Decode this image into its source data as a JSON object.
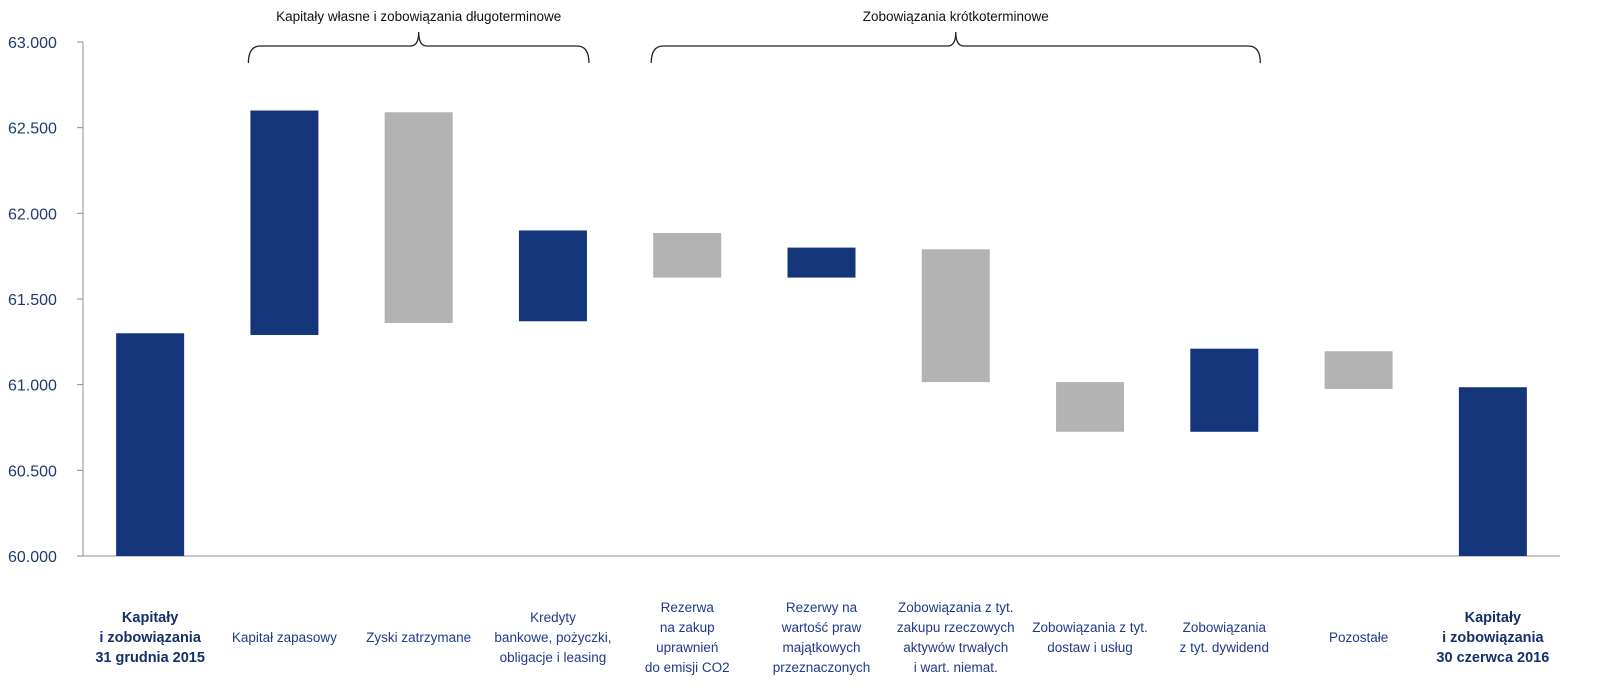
{
  "chart_data": {
    "type": "bar",
    "subtype": "waterfall",
    "title": "",
    "xlabel": "",
    "ylabel": "",
    "ylim": [
      60000,
      63000
    ],
    "y_ticks": [
      60000,
      60500,
      61000,
      61500,
      62000,
      62500,
      63000
    ],
    "y_tick_labels": [
      "60.000",
      "60.500",
      "61.000",
      "61.500",
      "62.000",
      "62.500",
      "63.000"
    ],
    "grid": false,
    "legend": "none",
    "colors": {
      "increase": "#14357a",
      "decrease": "#b3b3b3",
      "total": "#14357a"
    },
    "categories": [
      {
        "label": [
          "Kapitały",
          "i zobowiązania",
          "31 grudnia 2015"
        ],
        "bold": true
      },
      {
        "label": [
          "Kapitał zapasowy"
        ],
        "bold": false
      },
      {
        "label": [
          "Zyski zatrzymane"
        ],
        "bold": false
      },
      {
        "label": [
          "Kredyty",
          "bankowe, pożyczki,",
          "obligacje i leasing"
        ],
        "bold": false
      },
      {
        "label": [
          "Rezerwa",
          "na zakup",
          "uprawnień",
          "do emisji CO2"
        ],
        "bold": false
      },
      {
        "label": [
          "Rezerwy na",
          "wartość praw",
          "majątkowych",
          "przeznaczonych"
        ],
        "bold": false
      },
      {
        "label": [
          "Zobowiązania z tyt.",
          "zakupu rzeczowych",
          "aktywów trwałych",
          "i wart. niemat."
        ],
        "bold": false
      },
      {
        "label": [
          "Zobowiązania z tyt.",
          "dostaw i usług"
        ],
        "bold": false
      },
      {
        "label": [
          "Zobowiązania",
          "z tyt. dywidend"
        ],
        "bold": false
      },
      {
        "label": [
          "Pozostałe"
        ],
        "bold": false
      },
      {
        "label": [
          "Kapitały",
          "i zobowiązania",
          "30 czerwca 2016"
        ],
        "bold": true
      }
    ],
    "bars": [
      {
        "kind": "total",
        "start": 60000,
        "end": 61300
      },
      {
        "kind": "increase",
        "start": 61290,
        "end": 62600
      },
      {
        "kind": "decrease",
        "start": 62590,
        "end": 61360
      },
      {
        "kind": "increase",
        "start": 61370,
        "end": 61900
      },
      {
        "kind": "decrease",
        "start": 61885,
        "end": 61625
      },
      {
        "kind": "increase",
        "start": 61625,
        "end": 61800
      },
      {
        "kind": "decrease",
        "start": 61790,
        "end": 61015
      },
      {
        "kind": "decrease",
        "start": 61015,
        "end": 60725
      },
      {
        "kind": "increase",
        "start": 60725,
        "end": 61210
      },
      {
        "kind": "decrease",
        "start": 61195,
        "end": 60975
      },
      {
        "kind": "total",
        "start": 60000,
        "end": 60985
      }
    ],
    "groups": [
      {
        "label": "Kapitały własne i zobowiązania długoterminowe",
        "from": 1,
        "to": 3
      },
      {
        "label": "Zobowiązania krótkoterminowe",
        "from": 4,
        "to": 8
      }
    ]
  }
}
